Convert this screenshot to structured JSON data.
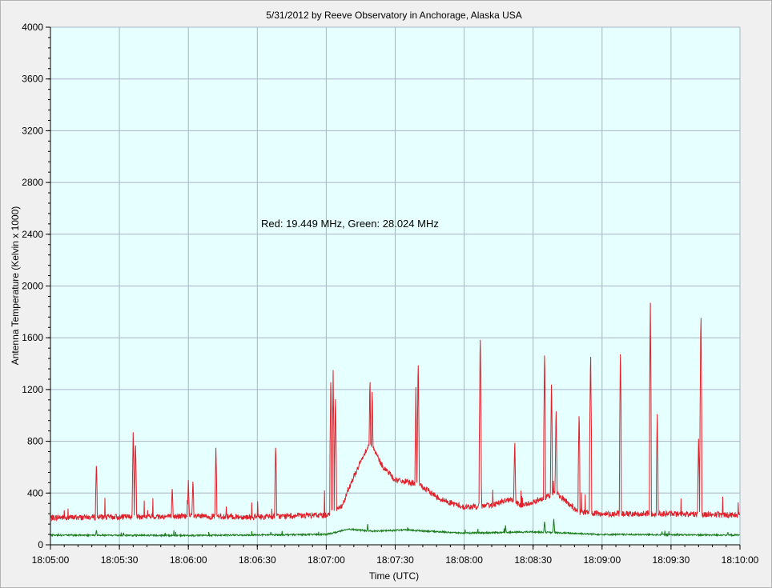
{
  "chart_data": {
    "type": "line",
    "title": "5/31/2012  by  Reeve Observatory  in  Anchorage, Alaska  USA",
    "annotation": "Red: 19.449 MHz, Green: 28.024 MHz",
    "xlabel": "Time (UTC)",
    "ylabel": "Antenna Temperature (Kelvin x 1000)",
    "xlim": [
      "18:05:00",
      "18:10:00"
    ],
    "ylim": [
      0,
      4000
    ],
    "x_ticks": [
      "18:05:00",
      "18:05:30",
      "18:06:00",
      "18:06:30",
      "18:07:00",
      "18:07:30",
      "18:08:00",
      "18:08:30",
      "18:09:00",
      "18:09:30",
      "18:10:00"
    ],
    "y_ticks": [
      "0",
      "400",
      "800",
      "1200",
      "1600",
      "2000",
      "2400",
      "2800",
      "3200",
      "3600",
      "4000"
    ],
    "grid": true,
    "colors": {
      "plot_background": "#e6ffff",
      "grid": "#a9b4c6",
      "red_series": "#e0202a",
      "green_series": "#1c7c1c"
    },
    "series": [
      {
        "color": "red",
        "frequency_mhz": 19.449,
        "baseline_points": [
          [
            "18:05:00",
            210
          ],
          [
            "18:06:00",
            220
          ],
          [
            "18:06:30",
            215
          ],
          [
            "18:07:00",
            230
          ],
          [
            "18:07:07",
            300
          ],
          [
            "18:07:10",
            450
          ],
          [
            "18:07:15",
            640
          ],
          [
            "18:07:18",
            760
          ],
          [
            "18:07:20",
            760
          ],
          [
            "18:07:24",
            620
          ],
          [
            "18:07:30",
            500
          ],
          [
            "18:07:40",
            470
          ],
          [
            "18:07:50",
            350
          ],
          [
            "18:08:00",
            290
          ],
          [
            "18:08:10",
            300
          ],
          [
            "18:08:20",
            350
          ],
          [
            "18:08:25",
            300
          ],
          [
            "18:08:40",
            400
          ],
          [
            "18:08:50",
            250
          ],
          [
            "18:09:00",
            240
          ],
          [
            "18:09:30",
            240
          ],
          [
            "18:10:00",
            230
          ]
        ],
        "spikes": [
          [
            "18:05:20",
            650
          ],
          [
            "18:05:36",
            870
          ],
          [
            "18:05:37",
            820
          ],
          [
            "18:05:53",
            460
          ],
          [
            "18:06:00",
            500
          ],
          [
            "18:06:02",
            520
          ],
          [
            "18:06:12",
            750
          ],
          [
            "18:06:38",
            800
          ],
          [
            "18:07:02",
            1340
          ],
          [
            "18:07:03",
            1350
          ],
          [
            "18:07:04",
            1200
          ],
          [
            "18:07:19",
            1340
          ],
          [
            "18:07:20",
            1260
          ],
          [
            "18:07:39",
            1220
          ],
          [
            "18:07:40",
            1480
          ],
          [
            "18:08:07",
            1690
          ],
          [
            "18:08:22",
            840
          ],
          [
            "18:08:35",
            1560
          ],
          [
            "18:08:38",
            1320
          ],
          [
            "18:08:40",
            1100
          ],
          [
            "18:08:50",
            1060
          ],
          [
            "18:08:55",
            1550
          ],
          [
            "18:09:08",
            1570
          ],
          [
            "18:09:21",
            1870
          ],
          [
            "18:09:24",
            1010
          ],
          [
            "18:09:43",
            1870
          ],
          [
            "18:09:42",
            820
          ]
        ]
      },
      {
        "color": "green",
        "frequency_mhz": 28.024,
        "baseline_points": [
          [
            "18:05:00",
            75
          ],
          [
            "18:06:00",
            72
          ],
          [
            "18:07:00",
            80
          ],
          [
            "18:07:10",
            120
          ],
          [
            "18:07:20",
            105
          ],
          [
            "18:07:35",
            115
          ],
          [
            "18:08:00",
            90
          ],
          [
            "18:08:30",
            100
          ],
          [
            "18:09:00",
            80
          ],
          [
            "18:10:00",
            75
          ]
        ],
        "spikes": [
          [
            "18:05:20",
            120
          ],
          [
            "18:07:18",
            160
          ],
          [
            "18:08:18",
            150
          ],
          [
            "18:08:35",
            190
          ],
          [
            "18:08:39",
            200
          ]
        ]
      }
    ]
  }
}
